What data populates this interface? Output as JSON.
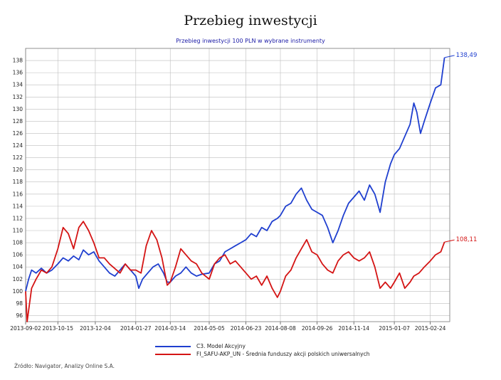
{
  "title": "Przebieg inwestycji",
  "subtitle": "Przebieg inwestycji 100 PLN w wybrane instrumenty",
  "source": "Źródło: Navigator, Analizy Online S.A.",
  "colors": {
    "series1": "#1f3fcf",
    "series2": "#d41414",
    "grid": "#bdbdbd",
    "axis": "#555555"
  },
  "chart_data": {
    "type": "line",
    "xlabel": "",
    "ylabel": "",
    "ylim": [
      95,
      140
    ],
    "y_ticks": [
      96,
      98,
      100,
      102,
      104,
      106,
      108,
      110,
      112,
      114,
      116,
      118,
      120,
      122,
      124,
      126,
      128,
      130,
      132,
      134,
      136,
      138
    ],
    "x_ticks": [
      "2013-09-02",
      "2013-10-15",
      "2013-12-04",
      "2014-01-27",
      "2014-03-14",
      "2014-05-05",
      "2014-06-23",
      "2014-08-08",
      "2014-09-26",
      "2014-11-14",
      "2015-01-07",
      "2015-02-24"
    ],
    "grid": true,
    "legend_position": "bottom",
    "series": [
      {
        "name": "C3. Model Akcyjny",
        "end_label": "138,49",
        "points": [
          [
            "2013-09-02",
            100.0
          ],
          [
            "2013-09-06",
            102.0
          ],
          [
            "2013-09-10",
            103.5
          ],
          [
            "2013-09-16",
            103.0
          ],
          [
            "2013-09-23",
            103.8
          ],
          [
            "2013-09-30",
            103.0
          ],
          [
            "2013-10-07",
            103.5
          ],
          [
            "2013-10-15",
            104.5
          ],
          [
            "2013-10-22",
            105.5
          ],
          [
            "2013-10-29",
            105.0
          ],
          [
            "2013-11-05",
            105.8
          ],
          [
            "2013-11-12",
            105.2
          ],
          [
            "2013-11-18",
            106.8
          ],
          [
            "2013-11-25",
            106.0
          ],
          [
            "2013-12-02",
            106.5
          ],
          [
            "2013-12-09",
            105.0
          ],
          [
            "2013-12-16",
            104.0
          ],
          [
            "2013-12-23",
            103.0
          ],
          [
            "2013-12-30",
            102.5
          ],
          [
            "2014-01-06",
            103.5
          ],
          [
            "2014-01-13",
            104.5
          ],
          [
            "2014-01-20",
            103.5
          ],
          [
            "2014-01-27",
            102.5
          ],
          [
            "2014-01-31",
            100.5
          ],
          [
            "2014-02-05",
            102.0
          ],
          [
            "2014-02-12",
            103.0
          ],
          [
            "2014-02-19",
            104.0
          ],
          [
            "2014-02-26",
            104.5
          ],
          [
            "2014-03-05",
            103.0
          ],
          [
            "2014-03-10",
            101.5
          ],
          [
            "2014-03-14",
            101.5
          ],
          [
            "2014-03-21",
            102.5
          ],
          [
            "2014-03-28",
            103.0
          ],
          [
            "2014-04-04",
            104.0
          ],
          [
            "2014-04-11",
            103.0
          ],
          [
            "2014-04-18",
            102.5
          ],
          [
            "2014-04-25",
            102.8
          ],
          [
            "2014-05-05",
            103.0
          ],
          [
            "2014-05-12",
            104.5
          ],
          [
            "2014-05-19",
            105.0
          ],
          [
            "2014-05-26",
            106.5
          ],
          [
            "2014-06-02",
            107.0
          ],
          [
            "2014-06-09",
            107.5
          ],
          [
            "2014-06-16",
            108.0
          ],
          [
            "2014-06-23",
            108.5
          ],
          [
            "2014-06-30",
            109.5
          ],
          [
            "2014-07-07",
            109.0
          ],
          [
            "2014-07-14",
            110.5
          ],
          [
            "2014-07-21",
            110.0
          ],
          [
            "2014-07-28",
            111.5
          ],
          [
            "2014-08-04",
            112.0
          ],
          [
            "2014-08-08",
            112.5
          ],
          [
            "2014-08-15",
            114.0
          ],
          [
            "2014-08-22",
            114.5
          ],
          [
            "2014-08-29",
            116.0
          ],
          [
            "2014-09-05",
            117.0
          ],
          [
            "2014-09-12",
            115.0
          ],
          [
            "2014-09-19",
            113.5
          ],
          [
            "2014-09-26",
            113.0
          ],
          [
            "2014-10-03",
            112.5
          ],
          [
            "2014-10-10",
            110.5
          ],
          [
            "2014-10-17",
            108.0
          ],
          [
            "2014-10-24",
            110.0
          ],
          [
            "2014-10-31",
            112.5
          ],
          [
            "2014-11-07",
            114.5
          ],
          [
            "2014-11-14",
            115.5
          ],
          [
            "2014-11-21",
            116.5
          ],
          [
            "2014-11-28",
            115.0
          ],
          [
            "2014-12-05",
            117.5
          ],
          [
            "2014-12-12",
            116.0
          ],
          [
            "2014-12-19",
            113.0
          ],
          [
            "2014-12-26",
            118.0
          ],
          [
            "2015-01-02",
            121.0
          ],
          [
            "2015-01-07",
            122.5
          ],
          [
            "2015-01-14",
            123.5
          ],
          [
            "2015-01-21",
            125.5
          ],
          [
            "2015-01-28",
            127.5
          ],
          [
            "2015-02-02",
            131.0
          ],
          [
            "2015-02-06",
            129.5
          ],
          [
            "2015-02-11",
            126.0
          ],
          [
            "2015-02-16",
            128.0
          ],
          [
            "2015-02-24",
            131.0
          ],
          [
            "2015-03-03",
            133.5
          ],
          [
            "2015-03-10",
            134.0
          ],
          [
            "2015-03-15",
            138.49
          ]
        ]
      },
      {
        "name": "FI_SAFU-AKP_UN - Średnia funduszy akcji polskich uniwersalnych",
        "end_label": "108,11",
        "points": [
          [
            "2013-09-02",
            100.0
          ],
          [
            "2013-09-04",
            95.0
          ],
          [
            "2013-09-10",
            100.5
          ],
          [
            "2013-09-16",
            102.0
          ],
          [
            "2013-09-23",
            103.5
          ],
          [
            "2013-09-30",
            103.0
          ],
          [
            "2013-10-07",
            104.0
          ],
          [
            "2013-10-15",
            107.0
          ],
          [
            "2013-10-22",
            110.5
          ],
          [
            "2013-10-29",
            109.5
          ],
          [
            "2013-11-05",
            107.0
          ],
          [
            "2013-11-12",
            110.5
          ],
          [
            "2013-11-18",
            111.5
          ],
          [
            "2013-11-25",
            110.0
          ],
          [
            "2013-12-02",
            108.0
          ],
          [
            "2013-12-09",
            105.5
          ],
          [
            "2013-12-16",
            105.5
          ],
          [
            "2013-12-23",
            104.5
          ],
          [
            "2014-01-06",
            103.0
          ],
          [
            "2014-01-13",
            104.5
          ],
          [
            "2014-01-20",
            103.5
          ],
          [
            "2014-01-27",
            103.5
          ],
          [
            "2014-02-03",
            103.0
          ],
          [
            "2014-02-10",
            107.5
          ],
          [
            "2014-02-17",
            110.0
          ],
          [
            "2014-02-24",
            108.5
          ],
          [
            "2014-03-03",
            105.5
          ],
          [
            "2014-03-10",
            101.0
          ],
          [
            "2014-03-14",
            101.5
          ],
          [
            "2014-03-21",
            104.0
          ],
          [
            "2014-03-28",
            107.0
          ],
          [
            "2014-04-04",
            106.0
          ],
          [
            "2014-04-11",
            105.0
          ],
          [
            "2014-04-18",
            104.5
          ],
          [
            "2014-04-25",
            103.0
          ],
          [
            "2014-05-05",
            102.0
          ],
          [
            "2014-05-12",
            104.5
          ],
          [
            "2014-05-19",
            105.5
          ],
          [
            "2014-05-26",
            106.0
          ],
          [
            "2014-06-02",
            104.5
          ],
          [
            "2014-06-09",
            105.0
          ],
          [
            "2014-06-16",
            104.0
          ],
          [
            "2014-06-23",
            103.0
          ],
          [
            "2014-06-30",
            102.0
          ],
          [
            "2014-07-07",
            102.5
          ],
          [
            "2014-07-14",
            101.0
          ],
          [
            "2014-07-21",
            102.5
          ],
          [
            "2014-07-28",
            100.5
          ],
          [
            "2014-08-04",
            99.0
          ],
          [
            "2014-08-08",
            100.0
          ],
          [
            "2014-08-15",
            102.5
          ],
          [
            "2014-08-22",
            103.5
          ],
          [
            "2014-08-29",
            105.5
          ],
          [
            "2014-09-05",
            107.0
          ],
          [
            "2014-09-12",
            108.5
          ],
          [
            "2014-09-19",
            106.5
          ],
          [
            "2014-09-26",
            106.0
          ],
          [
            "2014-10-03",
            104.5
          ],
          [
            "2014-10-10",
            103.5
          ],
          [
            "2014-10-17",
            103.0
          ],
          [
            "2014-10-24",
            105.0
          ],
          [
            "2014-10-31",
            106.0
          ],
          [
            "2014-11-07",
            106.5
          ],
          [
            "2014-11-14",
            105.5
          ],
          [
            "2014-11-21",
            105.0
          ],
          [
            "2014-11-28",
            105.5
          ],
          [
            "2014-12-05",
            106.5
          ],
          [
            "2014-12-12",
            104.0
          ],
          [
            "2014-12-19",
            100.5
          ],
          [
            "2014-12-26",
            101.5
          ],
          [
            "2015-01-02",
            100.5
          ],
          [
            "2015-01-07",
            101.5
          ],
          [
            "2015-01-14",
            103.0
          ],
          [
            "2015-01-21",
            100.5
          ],
          [
            "2015-01-28",
            101.5
          ],
          [
            "2015-02-02",
            102.5
          ],
          [
            "2015-02-09",
            103.0
          ],
          [
            "2015-02-16",
            104.0
          ],
          [
            "2015-02-24",
            105.0
          ],
          [
            "2015-03-03",
            106.0
          ],
          [
            "2015-03-10",
            106.5
          ],
          [
            "2015-03-15",
            108.11
          ]
        ]
      }
    ]
  }
}
